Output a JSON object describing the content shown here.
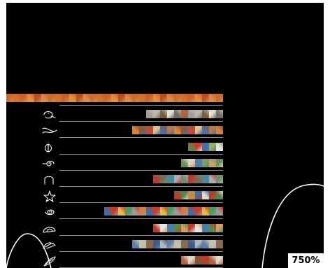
{
  "viewer": {
    "zoom_label": "750%",
    "background": "#000000",
    "line_color": "#ffffff",
    "rule_color": "#8a8a8a"
  },
  "rows": [
    {
      "glyph": "scrawl-glyph-icon",
      "thumbnails": 42,
      "palette": [
        "#d4732a",
        "#c9602a",
        "#e0913a",
        "#b84e22",
        "#d98b46",
        "#c86a30"
      ]
    },
    {
      "glyph": "face-glyph-icon",
      "thumbnails": 11,
      "palette": [
        "#9e9e9e",
        "#c0b9a8",
        "#7c5b3d",
        "#e5e0d2",
        "#6d6d6d",
        "#b8603c"
      ]
    },
    {
      "glyph": "fish-glyph-icon",
      "thumbnails": 13,
      "palette": [
        "#d9843b",
        "#8a5a3c",
        "#c44b3a",
        "#e3c28f",
        "#4f6f9e",
        "#b57b4d"
      ]
    },
    {
      "glyph": "leaf-glyph-icon",
      "thumbnails": 5,
      "palette": [
        "#5a8a4a",
        "#c83a2a",
        "#4a6fa8",
        "#8fb36d",
        "#e6e6e6"
      ]
    },
    {
      "glyph": "swirl-glyph-icon",
      "thumbnails": 6,
      "palette": [
        "#6a8f5a",
        "#d8d2c0",
        "#4f7fa8",
        "#7a9e6a",
        "#c9a36a"
      ]
    },
    {
      "glyph": "arch-glyph-icon",
      "thumbnails": 10,
      "palette": [
        "#c0392b",
        "#7a6a5a",
        "#4a8a9a",
        "#a8b0b8",
        "#6f8f6a"
      ]
    },
    {
      "glyph": "star-glyph-icon",
      "thumbnails": 7,
      "palette": [
        "#b83a2a",
        "#5a7f4a",
        "#c48a4a",
        "#3a6fa8",
        "#e0d8c8"
      ]
    },
    {
      "glyph": "spiral-glyph-icon",
      "thumbnails": 17,
      "palette": [
        "#3a6fa8",
        "#c93a2a",
        "#e0c040",
        "#4a9a5a",
        "#9a9a9a",
        "#d87a3a"
      ]
    },
    {
      "glyph": "shell-glyph-icon",
      "thumbnails": 10,
      "palette": [
        "#c0392b",
        "#e6e6e6",
        "#4a7fa8",
        "#5a8a4a",
        "#d8a060"
      ]
    },
    {
      "glyph": "wing-glyph-icon",
      "thumbnails": 13,
      "palette": [
        "#5a7fa8",
        "#c9c0a8",
        "#8a6a4a",
        "#3a5a8a",
        "#b0b8c0"
      ]
    },
    {
      "glyph": "feather-glyph-icon",
      "thumbnails": 6,
      "palette": [
        "#b8603c",
        "#e0d8c8",
        "#7a5a3a",
        "#c0392b"
      ]
    }
  ]
}
